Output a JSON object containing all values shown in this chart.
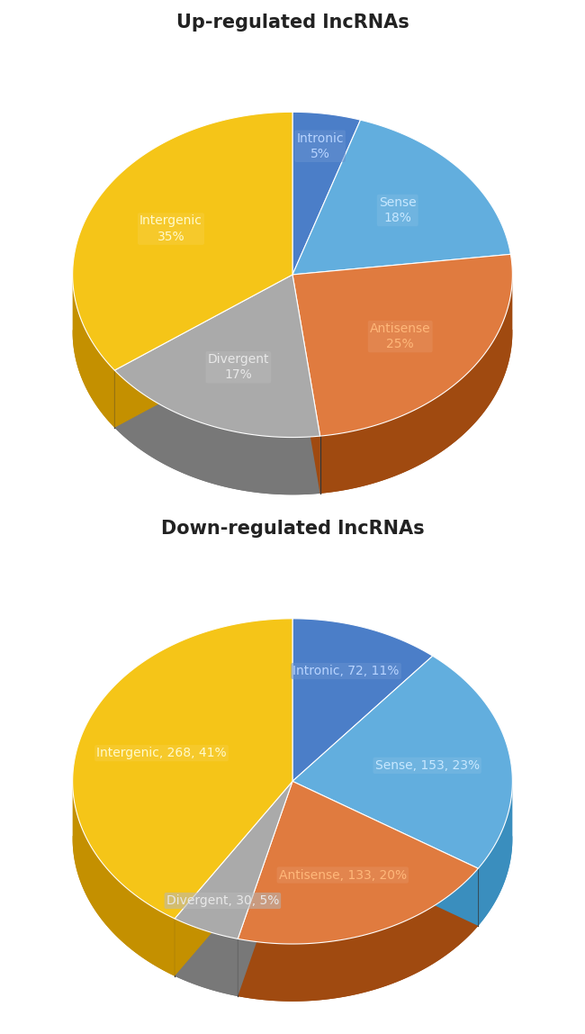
{
  "chart1": {
    "title": "Up-regulated lncRNAs",
    "labels": [
      "Intronic",
      "Sense",
      "Antisense",
      "Divergent",
      "Intergenic"
    ],
    "values": [
      5,
      18,
      25,
      17,
      35
    ],
    "colors": [
      "#4B7EC8",
      "#62AEDE",
      "#E07B3F",
      "#AAAAAA",
      "#F5C518"
    ],
    "dark_colors": [
      "#2B5DA8",
      "#3A8EBE",
      "#A04A10",
      "#787878",
      "#C49000"
    ],
    "text_colors": [
      "#B8D4FF",
      "#C8E8FF",
      "#FFB87A",
      "#E8E8E8",
      "#FFFACC"
    ],
    "label_texts": [
      "Intronic\n5%",
      "Sense\n18%",
      "Antisense\n25%",
      "Divergent\n17%",
      "Intergenic\n35%"
    ],
    "label_bg_colors": [
      "#4B7EC8",
      "#62AEDE",
      "#E07B3F",
      "#AAAAAA",
      "#F5C518"
    ],
    "startangle": 90
  },
  "chart2": {
    "title": "Down-regulated lncRNAs",
    "labels": [
      "Intronic",
      "Sense",
      "Antisense",
      "Divergent",
      "Intergenic"
    ],
    "values": [
      11,
      23,
      20,
      5,
      41
    ],
    "counts": [
      72,
      153,
      133,
      30,
      268
    ],
    "colors": [
      "#4B7EC8",
      "#62AEDE",
      "#E07B3F",
      "#AAAAAA",
      "#F5C518"
    ],
    "dark_colors": [
      "#2B5DA8",
      "#3A8EBE",
      "#A04A10",
      "#787878",
      "#C49000"
    ],
    "text_colors": [
      "#B8D4FF",
      "#C8E8FF",
      "#FFB87A",
      "#E8E8E8",
      "#FFFACC"
    ],
    "label_texts": [
      "Intronic, 72, 11%",
      "Sense, 153, 23%",
      "Antisense, 133, 20%",
      "Divergent, 30, 5%",
      "Intergenic, 268, 41%"
    ],
    "label_bg_colors": [
      "#4B7EC8",
      "#62AEDE",
      "#E07B3F",
      "#AAAAAA",
      "#F5C518"
    ],
    "startangle": 90
  },
  "bg_color": "#FFFFFF",
  "title_fontsize": 15,
  "label_fontsize": 10
}
